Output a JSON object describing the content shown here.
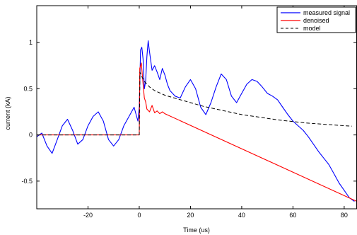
{
  "chart_data": {
    "type": "line",
    "xlabel": "Time (us)",
    "ylabel": "current (kA)",
    "xlim": [
      -40,
      85
    ],
    "ylim": [
      -0.8,
      1.4
    ],
    "xticks": [
      -20,
      0,
      20,
      40,
      60,
      80
    ],
    "yticks": [
      -0.5,
      0,
      0.5,
      1
    ],
    "legend_position": "top-right",
    "series": [
      {
        "name": "measured signal",
        "color": "#0000ff",
        "style": "solid",
        "points": [
          [
            -40,
            -0.02
          ],
          [
            -38,
            0.02
          ],
          [
            -36,
            -0.12
          ],
          [
            -34,
            -0.2
          ],
          [
            -32,
            -0.05
          ],
          [
            -30,
            0.1
          ],
          [
            -28,
            0.17
          ],
          [
            -26,
            0.05
          ],
          [
            -24,
            -0.1
          ],
          [
            -22,
            -0.05
          ],
          [
            -20,
            0.1
          ],
          [
            -18,
            0.2
          ],
          [
            -16,
            0.25
          ],
          [
            -14,
            0.15
          ],
          [
            -12,
            -0.05
          ],
          [
            -10,
            -0.12
          ],
          [
            -8,
            -0.05
          ],
          [
            -6,
            0.1
          ],
          [
            -4,
            0.2
          ],
          [
            -2,
            0.3
          ],
          [
            -0.5,
            0.15
          ],
          [
            0,
            0.3
          ],
          [
            0.5,
            0.92
          ],
          [
            1,
            0.95
          ],
          [
            1.5,
            0.82
          ],
          [
            2,
            0.5
          ],
          [
            2.5,
            0.58
          ],
          [
            3,
            0.85
          ],
          [
            3.5,
            1.02
          ],
          [
            4,
            0.9
          ],
          [
            5,
            0.7
          ],
          [
            6,
            0.75
          ],
          [
            7,
            0.68
          ],
          [
            8,
            0.6
          ],
          [
            9,
            0.72
          ],
          [
            10,
            0.65
          ],
          [
            11,
            0.55
          ],
          [
            12,
            0.48
          ],
          [
            14,
            0.42
          ],
          [
            16,
            0.4
          ],
          [
            18,
            0.52
          ],
          [
            20,
            0.6
          ],
          [
            22,
            0.5
          ],
          [
            24,
            0.3
          ],
          [
            26,
            0.22
          ],
          [
            28,
            0.35
          ],
          [
            30,
            0.52
          ],
          [
            32,
            0.66
          ],
          [
            34,
            0.6
          ],
          [
            36,
            0.42
          ],
          [
            38,
            0.35
          ],
          [
            40,
            0.45
          ],
          [
            42,
            0.55
          ],
          [
            44,
            0.6
          ],
          [
            46,
            0.58
          ],
          [
            48,
            0.52
          ],
          [
            50,
            0.45
          ],
          [
            52,
            0.42
          ],
          [
            54,
            0.38
          ],
          [
            56,
            0.3
          ],
          [
            58,
            0.22
          ],
          [
            60,
            0.15
          ],
          [
            62,
            0.1
          ],
          [
            64,
            0.05
          ],
          [
            66,
            -0.02
          ],
          [
            68,
            -0.1
          ],
          [
            70,
            -0.18
          ],
          [
            72,
            -0.25
          ],
          [
            74,
            -0.32
          ],
          [
            76,
            -0.42
          ],
          [
            78,
            -0.52
          ],
          [
            80,
            -0.6
          ],
          [
            82,
            -0.68
          ],
          [
            84,
            -0.72
          ]
        ]
      },
      {
        "name": "denoised",
        "color": "#ff0000",
        "style": "solid",
        "points": [
          [
            -40,
            0
          ],
          [
            0,
            0
          ],
          [
            0.2,
            0.72
          ],
          [
            0.8,
            0.78
          ],
          [
            1.5,
            0.55
          ],
          [
            2,
            0.4
          ],
          [
            2.5,
            0.36
          ],
          [
            3,
            0.28
          ],
          [
            4,
            0.25
          ],
          [
            5,
            0.32
          ],
          [
            6,
            0.24
          ],
          [
            7,
            0.26
          ],
          [
            8,
            0.23
          ],
          [
            9,
            0.25
          ],
          [
            10,
            0.23
          ],
          [
            85,
            -0.72
          ]
        ]
      },
      {
        "name": "model",
        "color": "#000000",
        "style": "dashed",
        "points": [
          [
            -40,
            0
          ],
          [
            0,
            0
          ],
          [
            0.3,
            0.68
          ],
          [
            1,
            0.63
          ],
          [
            2,
            0.58
          ],
          [
            4,
            0.52
          ],
          [
            6,
            0.48
          ],
          [
            10,
            0.43
          ],
          [
            15,
            0.39
          ],
          [
            20,
            0.35
          ],
          [
            25,
            0.31
          ],
          [
            30,
            0.28
          ],
          [
            35,
            0.25
          ],
          [
            40,
            0.22
          ],
          [
            45,
            0.2
          ],
          [
            50,
            0.18
          ],
          [
            55,
            0.16
          ],
          [
            60,
            0.145
          ],
          [
            65,
            0.13
          ],
          [
            70,
            0.12
          ],
          [
            75,
            0.11
          ],
          [
            80,
            0.1
          ],
          [
            83,
            0.095
          ]
        ]
      }
    ]
  }
}
